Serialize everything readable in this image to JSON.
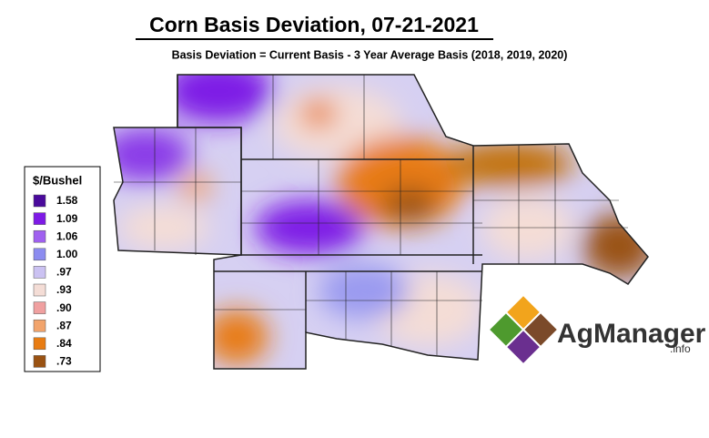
{
  "header": {
    "title": "Corn Basis Deviation, 07-21-2021",
    "subtitle": "Basis Deviation = Current Basis - 3 Year Average Basis (2018, 2019, 2020)"
  },
  "legend": {
    "title": "$/Bushel",
    "items": [
      {
        "label": "1.58",
        "color": "#4a0a9c"
      },
      {
        "label": "1.09",
        "color": "#7e1ae6"
      },
      {
        "label": "1.06",
        "color": "#a060f0"
      },
      {
        "label": "1.00",
        "color": "#8c8cf0"
      },
      {
        "label": ".97",
        "color": "#cbc2f2"
      },
      {
        "label": ".93",
        "color": "#f4ddd6"
      },
      {
        "label": ".90",
        "color": "#f0a0a0"
      },
      {
        "label": ".87",
        "color": "#f2a46c"
      },
      {
        "label": ".84",
        "color": "#e87c12"
      },
      {
        "label": ".73",
        "color": "#9a5212"
      }
    ]
  },
  "logo": {
    "name": "AgManager",
    "suffix": ".info"
  }
}
